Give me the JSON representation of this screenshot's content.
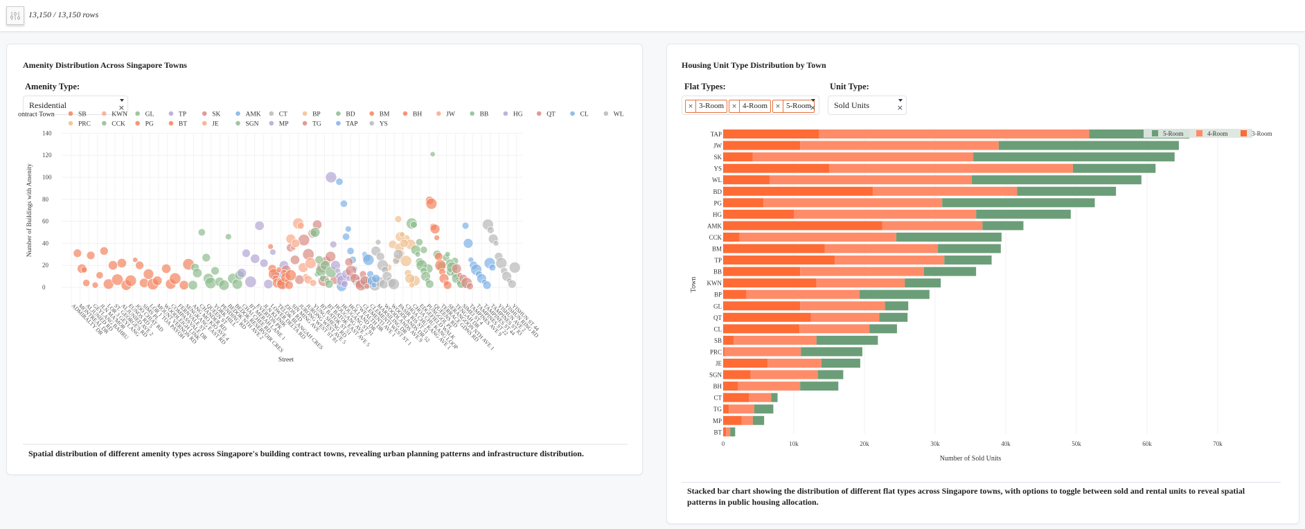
{
  "topbar": {
    "filter_icon": "sliders-icon",
    "row_count": "13,150 / 13,150 rows"
  },
  "left_panel": {
    "title": "Amenity Distribution Across Singapore Towns",
    "amenity_label": "Amenity Type:",
    "amenity_value": "Residential",
    "caption": "Spatial distribution of different amenity types across Singapore's building contract towns, revealing urban planning patterns and infrastructure distribution."
  },
  "right_panel": {
    "title": "Housing Unit Type Distribution by Town",
    "flat_types_label": "Flat Types:",
    "flat_types_selected": [
      "3-Room",
      "4-Room",
      "5-Room"
    ],
    "unit_type_label": "Unit Type:",
    "unit_type_value": "Sold Units",
    "caption": "Stacked bar chart showing the distribution of different flat types across Singapore towns, with options to toggle between sold and rental units to reveal spatial patterns in public housing allocation."
  },
  "chart_data": [
    {
      "type": "scatter",
      "title": "",
      "xlabel": "Street",
      "ylabel": "Number of Buildings with Amenity",
      "ylim": [
        -10,
        160
      ],
      "yticks": [
        0,
        20,
        40,
        60,
        80,
        100,
        120,
        140
      ],
      "legend_title": "Contract Town",
      "legend_position": "top",
      "legend": [
        {
          "name": "SB",
          "color": "#f4845f"
        },
        {
          "name": "KWN",
          "color": "#f9a98a"
        },
        {
          "name": "GL",
          "color": "#8fbc8f"
        },
        {
          "name": "TP",
          "color": "#b3a6d4"
        },
        {
          "name": "SK",
          "color": "#d98b85"
        },
        {
          "name": "AMK",
          "color": "#7fb2e5"
        },
        {
          "name": "CT",
          "color": "#b8b8b8"
        },
        {
          "name": "BP",
          "color": "#f0c08f"
        },
        {
          "name": "BD",
          "color": "#8fbc8f"
        },
        {
          "name": "BM",
          "color": "#f4845f"
        },
        {
          "name": "BH",
          "color": "#f4845f"
        },
        {
          "name": "JW",
          "color": "#f9a98a"
        },
        {
          "name": "BB",
          "color": "#8fbc8f"
        },
        {
          "name": "HG",
          "color": "#b3a6d4"
        },
        {
          "name": "QT",
          "color": "#d98b85"
        },
        {
          "name": "CL",
          "color": "#7fb2e5"
        },
        {
          "name": "WL",
          "color": "#b8b8b8"
        },
        {
          "name": "PRC",
          "color": "#f0c08f"
        },
        {
          "name": "CCK",
          "color": "#8fbc8f"
        },
        {
          "name": "PG",
          "color": "#f4845f"
        },
        {
          "name": "BT",
          "color": "#f4845f"
        },
        {
          "name": "JE",
          "color": "#f9a98a"
        },
        {
          "name": "SGN",
          "color": "#8fbc8f"
        },
        {
          "name": "MP",
          "color": "#b3a6d4"
        },
        {
          "name": "TG",
          "color": "#d98b85"
        },
        {
          "name": "TAP",
          "color": "#7fb2e5"
        },
        {
          "name": "YS",
          "color": "#b8b8b8"
        }
      ],
      "x_tick_labels": [
        "ADMIRALTY DR",
        "MONTREAL DR",
        "ALJUNIED RD",
        "GEYLANG BAHRU",
        "JLN MA'MOR",
        "LOR 3 GEYLANG",
        "ST. GEORGE'S RD",
        "ALJUNIED AVE 2",
        "EUNOS RD 5",
        "JOO CHIAT RD",
        "SIMS PL",
        "LOR 1 TOA PAYOH",
        "MOUNT VERNON RD",
        "WOODLEIGH LINK",
        "COMPASSVALE DR",
        "FERNVALE ST",
        "SENGKANG EAST RD",
        "ANG MO KIO AVE 4",
        "CHANDER RD",
        "QUEEN ST",
        "YORK HILL",
        "PENDING RD",
        "BEDOK NTH AVE 2",
        "BEDOK RESERVOIR CRES",
        "CHAI CHEE RD",
        "BT MERAH LANE 1",
        "EVERTON PK",
        "JLN KLINIK",
        "LOWER DELTA RD",
        "TELOK BLANGAH CRES",
        "ZION RD",
        "SIN MING AVE",
        "JURONG WEST ST 81",
        "JURONG WEST AVE 5",
        "YUNG SHENG RD",
        "BT BATOK ST 51",
        "BT BATOK EAST AVE 5",
        "HOUGANG AVE 7",
        "HOUGANG ST 91",
        "HOLLAND DR",
        "C'WEALTH DR",
        "CLEMENTI AVE 1",
        "CLEMENTI WEST ST 1",
        "MARSILING DR",
        "WOODLANDS AVE 9",
        "WOODLANDS DR 52",
        "PASIR RIS ST 51",
        "CHOA CHU KANG AVE 1",
        "CHOA CHU KANG LOOP",
        "EDGEFIELD WALK",
        "PUNGGOL PL",
        "QUEENS RD",
        "TERRACE GDNS RD",
        "SERANGOON NTH AVE 1",
        "TENGAH DR",
        "SIMEI ST 4",
        "TAMPINES AVE 9",
        "TAMPINES ST 22",
        "TAMPINES ST 44",
        "TAMPINES ST 83",
        "YISHUN AVE 2",
        "YISHUN RING RD",
        "YISHUN ST 44"
      ],
      "points_by_town_cluster": [
        {
          "town": "SB",
          "color": "#f4845f",
          "points": [
            [
              0.02,
              31,
              8
            ],
            [
              0.03,
              17,
              9
            ],
            [
              0.035,
              16,
              6
            ],
            [
              0.04,
              4,
              7
            ],
            [
              0.05,
              29,
              8
            ],
            [
              0.06,
              2,
              6
            ],
            [
              0.07,
              11,
              7
            ],
            [
              0.08,
              33,
              8
            ],
            [
              0.09,
              3,
              10
            ],
            [
              0.1,
              20,
              9
            ],
            [
              0.11,
              7,
              11
            ],
            [
              0.12,
              22,
              9
            ],
            [
              0.13,
              2,
              10
            ],
            [
              0.14,
              6,
              11
            ],
            [
              0.15,
              25,
              5
            ],
            [
              0.16,
              20,
              8
            ],
            [
              0.17,
              4,
              9
            ],
            [
              0.18,
              12,
              10
            ],
            [
              0.19,
              3,
              11
            ],
            [
              0.2,
              6,
              9
            ],
            [
              0.22,
              17,
              9
            ],
            [
              0.23,
              3,
              10
            ],
            [
              0.24,
              8,
              11
            ],
            [
              0.26,
              2,
              9
            ],
            [
              0.27,
              21,
              11
            ]
          ]
        },
        {
          "town": "GL",
          "color": "#8fbc8f",
          "points": [
            [
              0.28,
              2,
              9
            ],
            [
              0.285,
              18,
              8
            ],
            [
              0.29,
              13,
              9
            ],
            [
              0.3,
              50,
              7
            ],
            [
              0.31,
              27,
              8
            ],
            [
              0.315,
              8,
              10
            ],
            [
              0.32,
              4,
              11
            ],
            [
              0.33,
              15,
              8
            ],
            [
              0.34,
              5,
              9
            ],
            [
              0.35,
              2,
              10
            ],
            [
              0.36,
              46,
              6
            ],
            [
              0.37,
              8,
              10
            ],
            [
              0.38,
              3,
              10
            ],
            [
              0.385,
              11,
              9
            ]
          ]
        },
        {
          "town": "TP",
          "color": "#b3a6d4",
          "points": [
            [
              0.39,
              13,
              9
            ],
            [
              0.4,
              31,
              8
            ],
            [
              0.41,
              5,
              11
            ],
            [
              0.42,
              26,
              9
            ],
            [
              0.43,
              56,
              9
            ],
            [
              0.44,
              22,
              8
            ],
            [
              0.45,
              3,
              9
            ],
            [
              0.46,
              32,
              6
            ],
            [
              0.47,
              11,
              11
            ],
            [
              0.48,
              3,
              9
            ],
            [
              0.485,
              20,
              9
            ]
          ]
        },
        {
          "town": "SK",
          "color": "#d98b85",
          "points": [
            [
              0.49,
              16,
              9
            ],
            [
              0.5,
              36,
              8
            ],
            [
              0.51,
              25,
              9
            ],
            [
              0.52,
              7,
              9
            ],
            [
              0.53,
              43,
              11
            ],
            [
              0.54,
              30,
              11
            ],
            [
              0.55,
              49,
              9
            ],
            [
              0.56,
              57,
              9
            ],
            [
              0.57,
              18,
              10
            ],
            [
              0.575,
              6,
              11
            ],
            [
              0.58,
              24,
              9
            ],
            [
              0.59,
              28,
              10
            ],
            [
              0.6,
              7,
              9
            ]
          ]
        },
        {
          "town": "AMK",
          "color": "#7fb2e5",
          "points": [
            [
              0.61,
              96,
              7
            ],
            [
              0.615,
              1,
              10
            ],
            [
              0.62,
              76,
              7
            ],
            [
              0.625,
              46,
              7
            ],
            [
              0.63,
              53,
              6
            ],
            [
              0.635,
              33,
              7
            ],
            [
              0.64,
              25,
              7
            ],
            [
              0.645,
              17,
              5
            ],
            [
              0.65,
              5,
              9
            ]
          ]
        },
        {
          "town": "CT",
          "color": "#b8b8b8",
          "points": [
            [
              0.66,
              5,
              12
            ],
            [
              0.67,
              3,
              11
            ],
            [
              0.68,
              6,
              10
            ],
            [
              0.69,
              2,
              11
            ],
            [
              0.7,
              5,
              10
            ],
            [
              0.71,
              3,
              9
            ]
          ]
        },
        {
          "town": "BP",
          "color": "#f0c08f",
          "points": [
            [
              0.72,
              18,
              7
            ],
            [
              0.73,
              39,
              8
            ],
            [
              0.74,
              26,
              8
            ],
            [
              0.745,
              36,
              9
            ],
            [
              0.75,
              31,
              6
            ],
            [
              0.76,
              44,
              8
            ],
            [
              0.77,
              39,
              10
            ],
            [
              0.78,
              6,
              10
            ]
          ]
        },
        {
          "town": "BD",
          "color": "#8fbc8f",
          "points": [
            [
              0.79,
              41,
              7
            ],
            [
              0.8,
              34,
              7
            ],
            [
              0.81,
              17,
              9
            ],
            [
              0.82,
              121,
              5
            ],
            [
              0.83,
              30,
              8
            ],
            [
              0.84,
              19,
              9
            ],
            [
              0.85,
              27,
              7
            ],
            [
              0.86,
              14,
              8
            ],
            [
              0.87,
              24,
              7
            ],
            [
              0.88,
              6,
              8
            ],
            [
              0.89,
              3,
              8
            ]
          ]
        }
      ],
      "note": "Points are [x fraction along street axis, y value, marker size]. Additional clusters follow for BM, BH, JW, BB, HG, QT, CL, WL, PRC, CCK, PG, BT, JE, SGN, MP, TG, TAP, YS."
    },
    {
      "type": "bar",
      "orientation": "horizontal",
      "stacked": true,
      "title": "",
      "xlabel": "Number of Sold Units",
      "ylabel": "Town",
      "xlim": [
        0,
        80000
      ],
      "xticks": [
        0,
        10000,
        20000,
        30000,
        40000,
        50000,
        60000,
        70000
      ],
      "xtick_labels": [
        "0",
        "10k",
        "20k",
        "30k",
        "40k",
        "50k",
        "60k",
        "70k"
      ],
      "legend_position": "top-right",
      "categories": [
        "TAP",
        "JW",
        "SK",
        "YS",
        "WL",
        "BD",
        "PG",
        "HG",
        "AMK",
        "CCK",
        "BM",
        "TP",
        "BB",
        "KWN",
        "BP",
        "GL",
        "QT",
        "CL",
        "SB",
        "PRC",
        "JE",
        "SGN",
        "BH",
        "CT",
        "TG",
        "MP",
        "BT"
      ],
      "series": [
        {
          "name": "3-Room",
          "color": "#ff6b35",
          "values": [
            13600,
            10900,
            4200,
            15000,
            6600,
            21200,
            5700,
            10000,
            22500,
            2300,
            14400,
            15800,
            10900,
            13200,
            3300,
            10900,
            12400,
            10800,
            1500,
            200,
            6300,
            3900,
            2100,
            3700,
            800,
            2600,
            400
          ]
        },
        {
          "name": "4-Room",
          "color": "#ff8c69",
          "values": [
            38200,
            28100,
            31200,
            34500,
            28600,
            20400,
            25300,
            25800,
            14200,
            22200,
            16000,
            15500,
            17500,
            12500,
            16000,
            12000,
            9700,
            9900,
            11700,
            10800,
            7600,
            9500,
            8800,
            3100,
            3600,
            1600,
            600
          ]
        },
        {
          "name": "5-Room",
          "color": "#6b9e78",
          "values": [
            14200,
            25500,
            28500,
            11700,
            24000,
            14000,
            21600,
            13400,
            5800,
            14900,
            8900,
            6700,
            7400,
            5100,
            9900,
            3300,
            4000,
            3900,
            8700,
            8700,
            5500,
            3600,
            5400,
            900,
            2700,
            1600,
            700
          ]
        }
      ]
    }
  ]
}
